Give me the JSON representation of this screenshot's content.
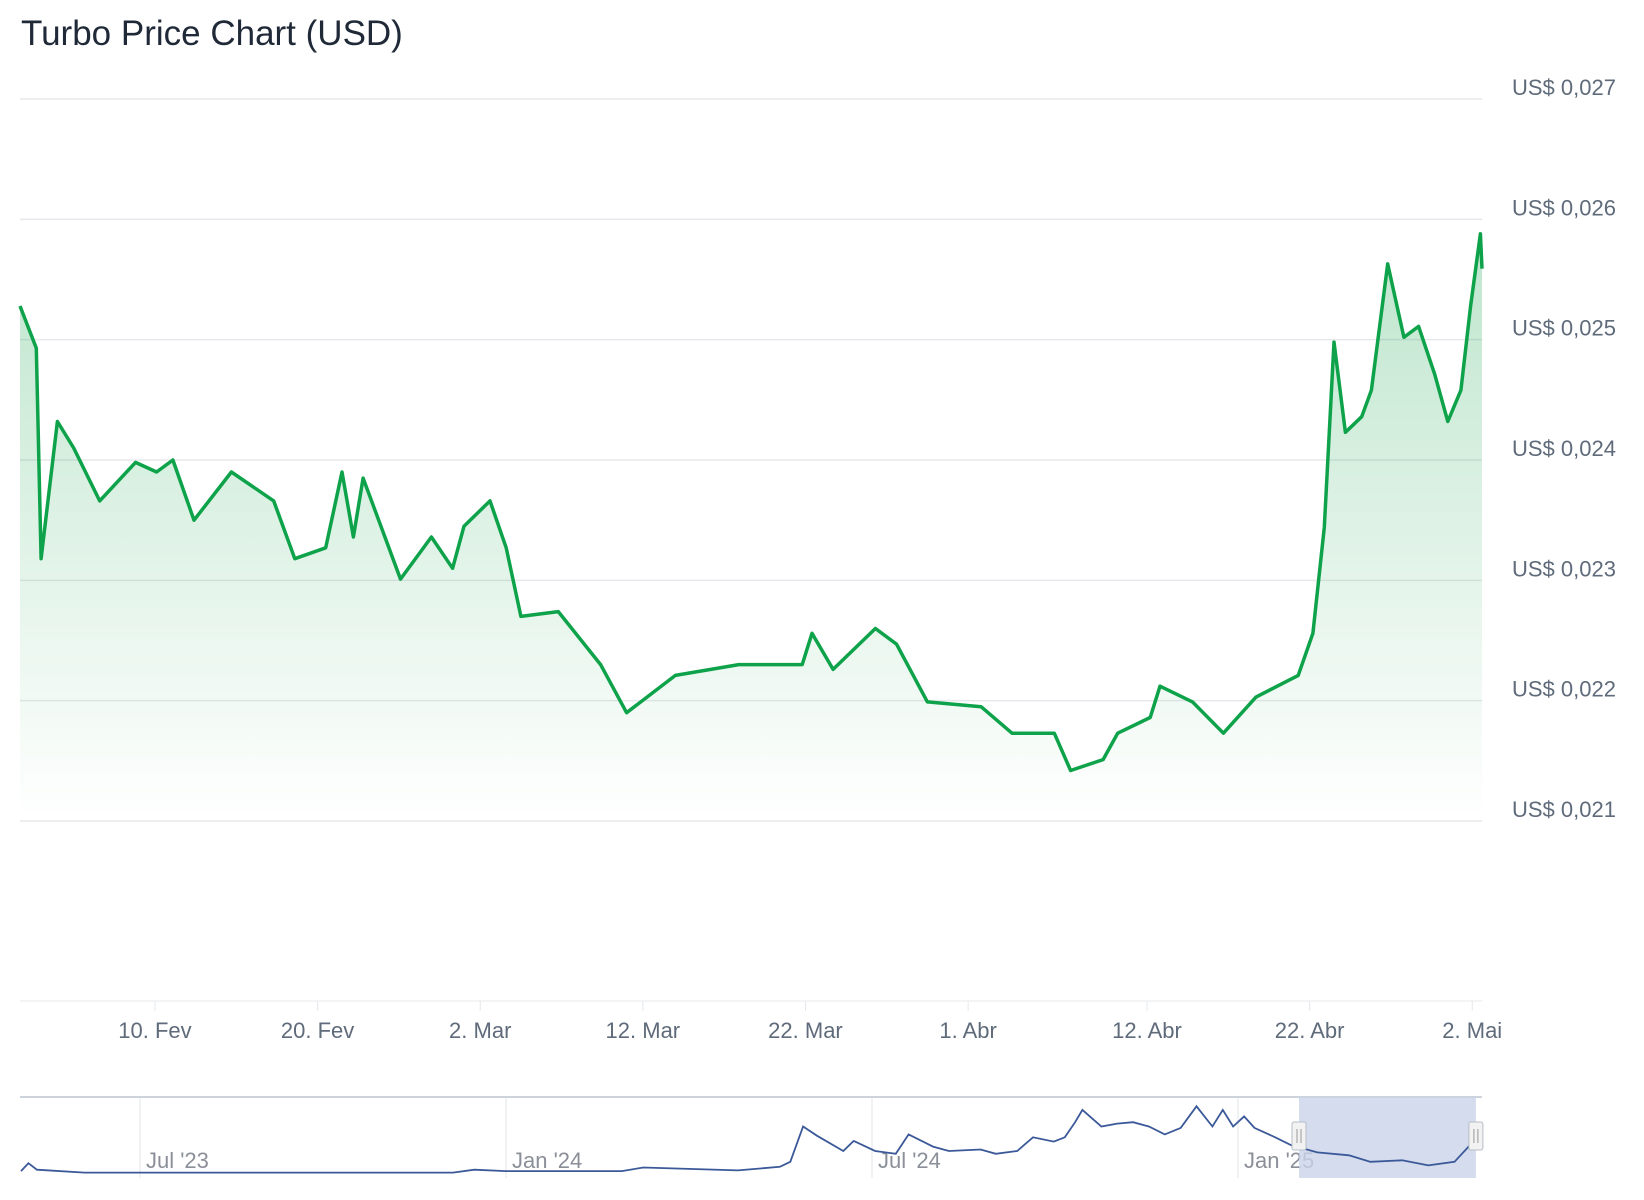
{
  "title": "Turbo Price Chart (USD)",
  "colors": {
    "line": "#0ea34a",
    "fill": "#16a34a",
    "grid": "#e6e8eb",
    "nav_line": "#3b5998",
    "nav_selection": "#c9d3ea"
  },
  "chart_data": {
    "type": "area",
    "title": "Turbo Price Chart (USD)",
    "xlabel": "",
    "ylabel": "",
    "x_unit": "days since 1 Feb 2025",
    "xlim": [
      0.7,
      90.6
    ],
    "ylim": [
      0.0205,
      0.0272
    ],
    "grid": true,
    "y_ticks": [
      {
        "value": 0.027,
        "label": "US$ 0,027"
      },
      {
        "value": 0.026,
        "label": "US$ 0,026"
      },
      {
        "value": 0.025,
        "label": "US$ 0,025"
      },
      {
        "value": 0.024,
        "label": "US$ 0,024"
      },
      {
        "value": 0.023,
        "label": "US$ 0,023"
      },
      {
        "value": 0.022,
        "label": "US$ 0,022"
      },
      {
        "value": 0.021,
        "label": "US$ 0,021"
      }
    ],
    "x_ticks": [
      {
        "value": 9,
        "label": "10. Fev"
      },
      {
        "value": 19,
        "label": "20. Fev"
      },
      {
        "value": 29,
        "label": "2. Mar"
      },
      {
        "value": 39,
        "label": "12. Mar"
      },
      {
        "value": 49,
        "label": "22. Mar"
      },
      {
        "value": 59,
        "label": "1. Abr"
      },
      {
        "value": 70,
        "label": "12. Abr"
      },
      {
        "value": 80,
        "label": "22. Abr"
      },
      {
        "value": 90,
        "label": "2. Mai"
      }
    ],
    "series": [
      {
        "name": "Turbo",
        "x": [
          0.7,
          1.7,
          2.0,
          3.0,
          4.0,
          5.6,
          7.8,
          9.1,
          10.1,
          11.4,
          13.7,
          16.3,
          17.6,
          19.5,
          20.5,
          21.2,
          21.8,
          24.1,
          26.0,
          27.3,
          28.0,
          29.6,
          30.6,
          31.5,
          33.8,
          36.4,
          38.0,
          41.0,
          44.9,
          48.8,
          49.4,
          50.7,
          53.3,
          54.6,
          56.5,
          59.8,
          61.7,
          64.3,
          65.3,
          67.3,
          68.2,
          70.2,
          70.8,
          72.8,
          74.7,
          76.7,
          79.3,
          80.2,
          80.9,
          81.5,
          82.2,
          83.2,
          83.8,
          84.8,
          85.8,
          86.7,
          87.7,
          88.5,
          89.3,
          89.9,
          90.5,
          90.6
        ],
        "values": [
          0.02528,
          0.02493,
          0.02318,
          0.02432,
          0.0241,
          0.02366,
          0.02398,
          0.0239,
          0.024,
          0.0235,
          0.0239,
          0.02366,
          0.02318,
          0.02327,
          0.0239,
          0.02336,
          0.02385,
          0.02301,
          0.02336,
          0.0231,
          0.02345,
          0.02366,
          0.02327,
          0.0227,
          0.02274,
          0.0223,
          0.0219,
          0.02221,
          0.0223,
          0.0223,
          0.02256,
          0.02226,
          0.0226,
          0.02247,
          0.02199,
          0.02195,
          0.02173,
          0.02173,
          0.02142,
          0.02151,
          0.02173,
          0.02186,
          0.02212,
          0.02199,
          0.02173,
          0.02203,
          0.02221,
          0.02256,
          0.02344,
          0.02498,
          0.02423,
          0.02436,
          0.02458,
          0.02563,
          0.02502,
          0.02511,
          0.02471,
          0.02432,
          0.02458,
          0.02528,
          0.02588,
          0.02559
        ]
      }
    ]
  },
  "navigator": {
    "x_unit": "months since Jul 2023",
    "xlim": [
      -1.95,
      21.9
    ],
    "selection": [
      19.0,
      21.9
    ],
    "ticks": [
      {
        "value": 0,
        "label": "Jul '23"
      },
      {
        "value": 6,
        "label": "Jan '24"
      },
      {
        "value": 12,
        "label": "Jul '24"
      },
      {
        "value": 18,
        "label": "Jan '25"
      }
    ],
    "x": [
      -1.95,
      -1.83,
      -1.69,
      -0.91,
      5.13,
      5.48,
      6.0,
      7.9,
      8.25,
      9.8,
      10.49,
      10.66,
      10.87,
      11.1,
      11.53,
      11.7,
      12.05,
      12.39,
      12.6,
      13.0,
      13.26,
      13.78,
      14.03,
      14.38,
      14.64,
      14.98,
      15.16,
      15.33,
      15.45,
      15.76,
      16.02,
      16.28,
      16.54,
      16.8,
      17.06,
      17.32,
      17.58,
      17.75,
      17.92,
      18.1,
      18.27,
      18.61,
      18.87,
      19.3,
      19.82,
      20.17,
      20.69,
      21.12,
      21.55,
      21.78,
      21.9
    ],
    "relative_values": [
      0.04,
      0.15,
      0.06,
      0.02,
      0.02,
      0.06,
      0.04,
      0.04,
      0.09,
      0.05,
      0.1,
      0.17,
      0.66,
      0.53,
      0.32,
      0.46,
      0.32,
      0.28,
      0.55,
      0.38,
      0.32,
      0.34,
      0.28,
      0.32,
      0.51,
      0.45,
      0.51,
      0.72,
      0.89,
      0.66,
      0.7,
      0.72,
      0.66,
      0.55,
      0.64,
      0.94,
      0.66,
      0.89,
      0.66,
      0.8,
      0.64,
      0.51,
      0.4,
      0.3,
      0.26,
      0.17,
      0.19,
      0.12,
      0.17,
      0.38,
      0.39
    ]
  }
}
